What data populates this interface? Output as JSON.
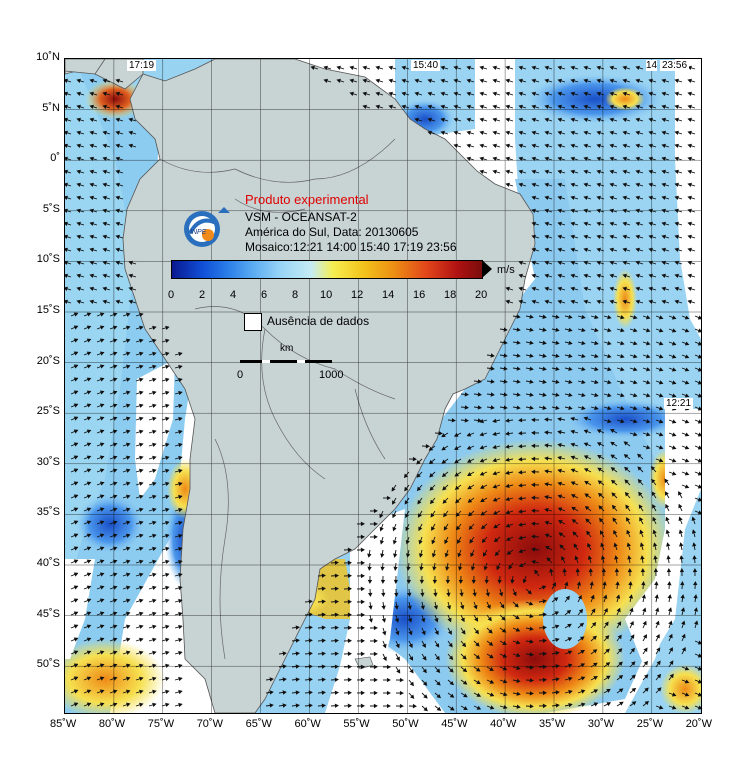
{
  "map": {
    "title": "Produto experimental",
    "sensor": "VSM - OCEANSAT-2",
    "region_date": "América do Sul, Data: 20130605",
    "mosaic": "Mosaico:12:21 14:00 15:40 17:19 23:56",
    "lon_labels": [
      "85˚W",
      "80˚W",
      "75˚W",
      "70˚W",
      "65˚W",
      "60˚W",
      "55˚W",
      "50˚W",
      "45˚W",
      "40˚W",
      "35˚W",
      "30˚W",
      "25˚W",
      "20˚W"
    ],
    "lat_labels": [
      "10˚N",
      "5˚N",
      "0˚",
      "5˚S",
      "10˚S",
      "15˚S",
      "20˚S",
      "25˚S",
      "30˚S",
      "35˚S",
      "40˚S",
      "45˚S",
      "50˚S"
    ],
    "pass_times": [
      "17:19",
      "15:40",
      "14",
      "23:56",
      "12:21"
    ],
    "colorbar": {
      "ticks": [
        "0",
        "2",
        "4",
        "6",
        "8",
        "10",
        "12",
        "14",
        "16",
        "18",
        "20"
      ],
      "unit": "m/s"
    },
    "legend": {
      "no_data": "Ausência de dados"
    },
    "scale": {
      "title": "km",
      "left": "0",
      "right": "1000"
    },
    "colors": {
      "land": "#c8d3d3",
      "ocean_no_data": "#ffffff",
      "title_red": "#e00000"
    }
  }
}
